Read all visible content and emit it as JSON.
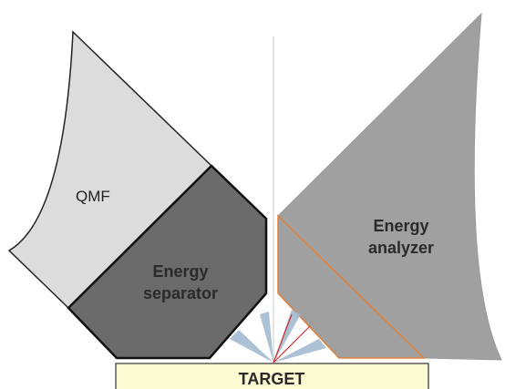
{
  "labels": {
    "qmf": "QMF",
    "energy_separator": [
      "Energy",
      "separator"
    ],
    "energy_analyzer": [
      "Energy",
      "analyzer"
    ],
    "target": "TARGET"
  }
}
